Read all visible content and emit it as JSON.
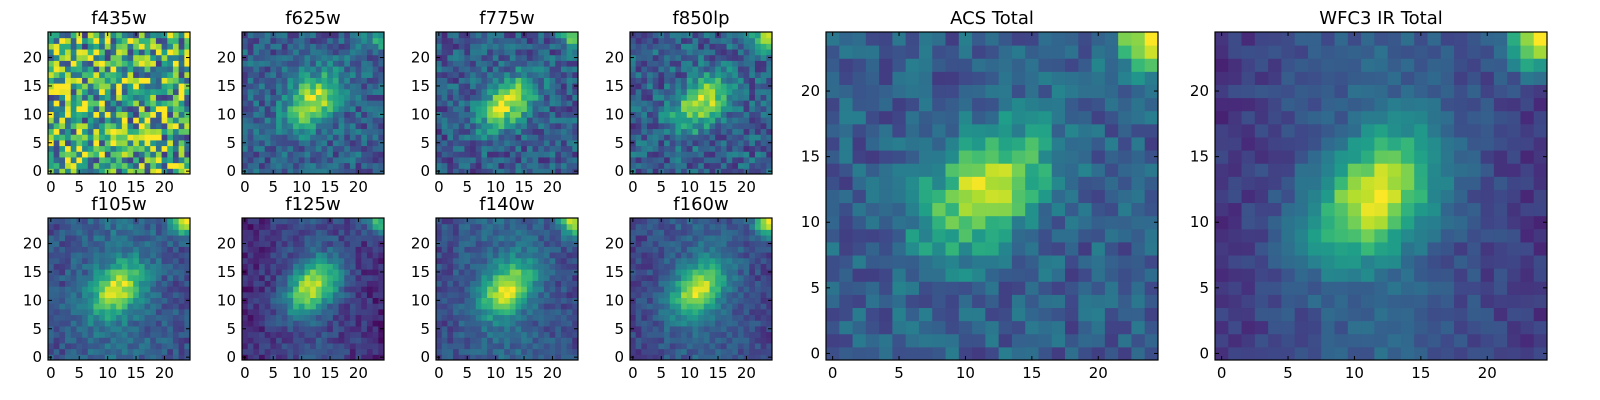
{
  "chart_data": [
    {
      "type": "heatmap",
      "title": "f435w",
      "colormap": "viridis",
      "grid_size": 25,
      "xlim": [
        0,
        24
      ],
      "ylim": [
        0,
        24
      ],
      "xticks": [
        0,
        5,
        10,
        15,
        20
      ],
      "yticks": [
        0,
        5,
        10,
        15,
        20
      ],
      "source_centroid": [
        12,
        12
      ],
      "source_peak": 0.05,
      "corner_blob": 0.0,
      "noise": 0.9,
      "background": 0.62,
      "background_gradient": 0.0
    },
    {
      "type": "heatmap",
      "title": "f625w",
      "colormap": "viridis",
      "grid_size": 25,
      "xlim": [
        0,
        24
      ],
      "ylim": [
        0,
        24
      ],
      "xticks": [
        0,
        5,
        10,
        15,
        20
      ],
      "yticks": [
        0,
        5,
        10,
        15,
        20
      ],
      "source_centroid": [
        12,
        12.5
      ],
      "source_peak": 0.62,
      "corner_blob": 0.3,
      "noise": 0.32,
      "background": 0.3,
      "background_gradient": 0.0
    },
    {
      "type": "heatmap",
      "title": "f775w",
      "colormap": "viridis",
      "grid_size": 25,
      "xlim": [
        0,
        24
      ],
      "ylim": [
        0,
        24
      ],
      "xticks": [
        0,
        5,
        10,
        15,
        20
      ],
      "yticks": [
        0,
        5,
        10,
        15,
        20
      ],
      "source_centroid": [
        12,
        12
      ],
      "source_peak": 0.65,
      "corner_blob": 0.5,
      "noise": 0.34,
      "background": 0.28,
      "background_gradient": 0.0
    },
    {
      "type": "heatmap",
      "title": "f850lp",
      "colormap": "viridis",
      "grid_size": 25,
      "xlim": [
        0,
        24
      ],
      "ylim": [
        0,
        24
      ],
      "xticks": [
        0,
        5,
        10,
        15,
        20
      ],
      "yticks": [
        0,
        5,
        10,
        15,
        20
      ],
      "source_centroid": [
        12,
        12
      ],
      "source_peak": 0.6,
      "corner_blob": 0.6,
      "noise": 0.36,
      "background": 0.3,
      "background_gradient": 0.0
    },
    {
      "type": "heatmap",
      "title": "f105w",
      "colormap": "viridis",
      "grid_size": 25,
      "xlim": [
        0,
        24
      ],
      "ylim": [
        0,
        24
      ],
      "xticks": [
        0,
        5,
        10,
        15,
        20
      ],
      "yticks": [
        0,
        5,
        10,
        15,
        20
      ],
      "source_centroid": [
        11.5,
        12
      ],
      "source_peak": 0.6,
      "corner_blob": 0.7,
      "noise": 0.22,
      "background": 0.3,
      "background_gradient": 0.12
    },
    {
      "type": "heatmap",
      "title": "f125w",
      "colormap": "viridis",
      "grid_size": 25,
      "xlim": [
        0,
        24
      ],
      "ylim": [
        0,
        24
      ],
      "xticks": [
        0,
        5,
        10,
        15,
        20
      ],
      "yticks": [
        0,
        5,
        10,
        15,
        20
      ],
      "source_centroid": [
        12,
        12.5
      ],
      "source_peak": 0.7,
      "corner_blob": 0.6,
      "noise": 0.2,
      "background": 0.18,
      "background_gradient": 0.14
    },
    {
      "type": "heatmap",
      "title": "f140w",
      "colormap": "viridis",
      "grid_size": 25,
      "xlim": [
        0,
        24
      ],
      "ylim": [
        0,
        24
      ],
      "xticks": [
        0,
        5,
        10,
        15,
        20
      ],
      "yticks": [
        0,
        5,
        10,
        15,
        20
      ],
      "source_centroid": [
        12,
        12
      ],
      "source_peak": 0.62,
      "corner_blob": 0.7,
      "noise": 0.2,
      "background": 0.28,
      "background_gradient": 0.12
    },
    {
      "type": "heatmap",
      "title": "f160w",
      "colormap": "viridis",
      "grid_size": 25,
      "xlim": [
        0,
        24
      ],
      "ylim": [
        0,
        24
      ],
      "xticks": [
        0,
        5,
        10,
        15,
        20
      ],
      "yticks": [
        0,
        5,
        10,
        15,
        20
      ],
      "source_centroid": [
        11.5,
        12
      ],
      "source_peak": 0.64,
      "corner_blob": 0.8,
      "noise": 0.18,
      "background": 0.26,
      "background_gradient": 0.12
    },
    {
      "type": "heatmap",
      "title": "ACS Total",
      "colormap": "viridis",
      "grid_size": 25,
      "xlim": [
        0,
        24
      ],
      "ylim": [
        0,
        24
      ],
      "xticks": [
        0,
        5,
        10,
        15,
        20
      ],
      "yticks": [
        0,
        5,
        10,
        15,
        20
      ],
      "source_centroid": [
        11.5,
        12.5
      ],
      "source_peak": 0.62,
      "corner_blob": 0.7,
      "noise": 0.26,
      "background": 0.3,
      "background_gradient": 0.0
    },
    {
      "type": "heatmap",
      "title": "WFC3 IR Total",
      "colormap": "viridis",
      "grid_size": 25,
      "xlim": [
        0,
        24
      ],
      "ylim": [
        0,
        24
      ],
      "xticks": [
        0,
        5,
        10,
        15,
        20
      ],
      "yticks": [
        0,
        5,
        10,
        15,
        20
      ],
      "source_centroid": [
        11.5,
        12
      ],
      "source_peak": 0.66,
      "corner_blob": 0.8,
      "noise": 0.14,
      "background": 0.24,
      "background_gradient": 0.16
    }
  ]
}
